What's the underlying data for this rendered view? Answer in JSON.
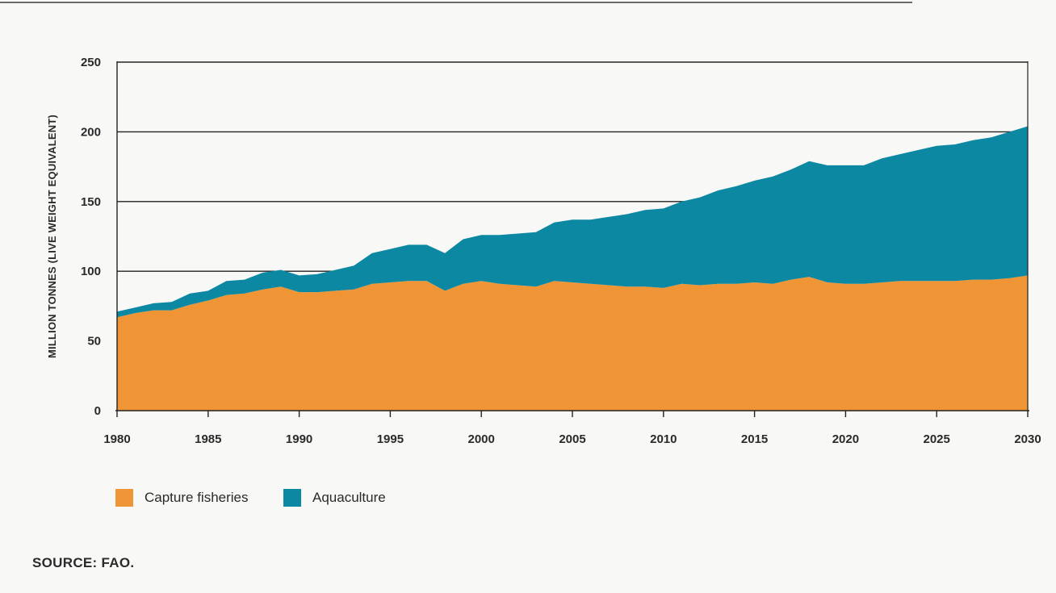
{
  "chart_data": {
    "type": "area",
    "stacked": true,
    "x": [
      1980,
      1981,
      1982,
      1983,
      1984,
      1985,
      1986,
      1987,
      1988,
      1989,
      1990,
      1991,
      1992,
      1993,
      1994,
      1995,
      1996,
      1997,
      1998,
      1999,
      2000,
      2001,
      2002,
      2003,
      2004,
      2005,
      2006,
      2007,
      2008,
      2009,
      2010,
      2011,
      2012,
      2013,
      2014,
      2015,
      2016,
      2017,
      2018,
      2019,
      2020,
      2021,
      2022,
      2023,
      2024,
      2025,
      2026,
      2027,
      2028,
      2029,
      2030
    ],
    "series": [
      {
        "name": "Capture fisheries",
        "color": "#ef9536",
        "values": [
          67,
          70,
          72,
          72,
          76,
          79,
          83,
          84,
          87,
          89,
          85,
          85,
          86,
          87,
          91,
          92,
          93,
          93,
          86,
          91,
          93,
          91,
          90,
          89,
          93,
          92,
          91,
          90,
          89,
          89,
          88,
          91,
          90,
          91,
          91,
          92,
          91,
          94,
          96,
          92,
          91,
          91,
          92,
          93,
          93,
          93,
          93,
          94,
          94,
          95,
          97
        ]
      },
      {
        "name": "Aquaculture",
        "color": "#0c88a2",
        "values": [
          4,
          4,
          5,
          6,
          8,
          7,
          10,
          10,
          12,
          12,
          12,
          13,
          15,
          17,
          22,
          24,
          26,
          26,
          27,
          32,
          33,
          35,
          37,
          39,
          42,
          45,
          46,
          49,
          52,
          55,
          57,
          59,
          63,
          67,
          70,
          73,
          77,
          79,
          83,
          84,
          85,
          85,
          89,
          91,
          94,
          97,
          98,
          100,
          102,
          105,
          107
        ]
      }
    ],
    "xticks": [
      "1980",
      "1985",
      "1990",
      "1995",
      "2000",
      "2005",
      "2010",
      "2015",
      "2020",
      "2025",
      "2030"
    ],
    "yticks": [
      "0",
      "50",
      "100",
      "150",
      "200",
      "250"
    ],
    "xlim": [
      1980,
      2030
    ],
    "ylim": [
      0,
      250
    ],
    "ylabel": "MILLION TONNES (LIVE WEIGHT EQUIVALENT)",
    "title": "",
    "xlabel": "",
    "grid": "horizontal",
    "legend_position": "bottom-left"
  },
  "legend": {
    "capture_label": "Capture fisheries",
    "aquaculture_label": "Aquaculture"
  },
  "source_note": "SOURCE: FAO."
}
